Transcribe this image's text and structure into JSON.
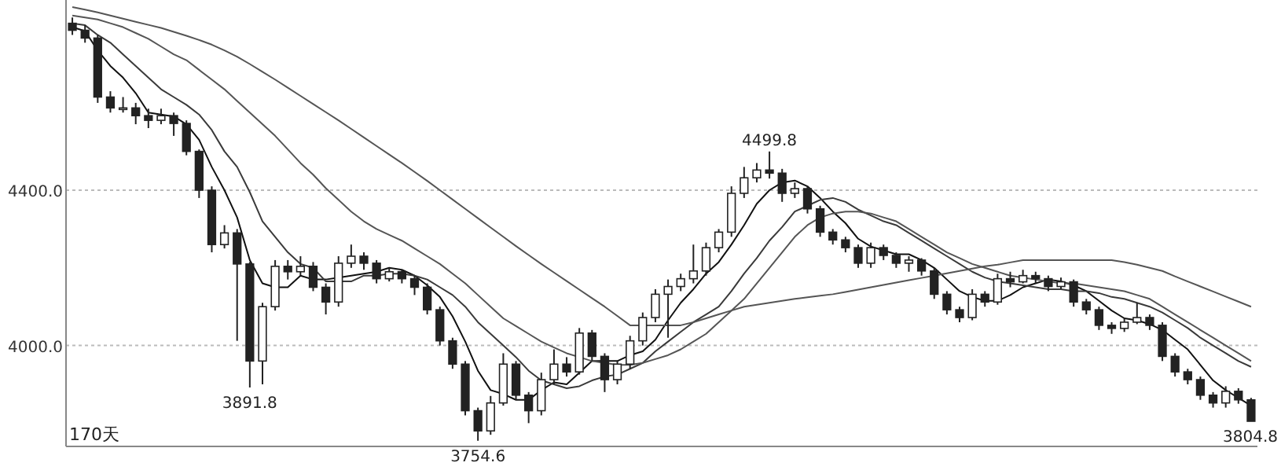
{
  "chart_data": {
    "type": "candlestick",
    "categories": [
      null,
      null,
      null,
      null,
      null,
      null,
      null,
      null,
      null,
      null,
      null,
      null,
      null,
      null,
      null,
      null,
      null,
      null,
      null,
      null,
      null,
      null,
      null,
      null,
      null,
      null,
      null,
      null,
      null,
      null,
      null,
      null,
      null,
      null,
      null,
      null,
      null,
      null,
      null,
      null,
      null,
      null,
      null,
      null,
      null,
      null,
      null,
      null,
      null,
      null,
      null,
      null,
      null,
      null,
      null,
      null,
      null,
      null,
      null,
      null,
      null,
      null,
      null,
      null,
      null,
      null,
      null,
      null,
      null,
      null,
      null,
      null,
      null,
      null,
      null,
      null,
      null,
      null,
      null,
      null,
      null,
      null,
      null,
      null,
      null,
      null,
      null,
      null,
      null,
      null,
      null,
      null,
      null,
      null
    ],
    "ohlc": [
      [
        4830,
        4845,
        4800,
        4812
      ],
      [
        4812,
        4825,
        4780,
        4792
      ],
      [
        4792,
        4800,
        4625,
        4640
      ],
      [
        4640,
        4655,
        4600,
        4612
      ],
      [
        4612,
        4640,
        4600,
        4612
      ],
      [
        4612,
        4625,
        4570,
        4592
      ],
      [
        4592,
        4610,
        4560,
        4580
      ],
      [
        4580,
        4610,
        4570,
        4592
      ],
      [
        4592,
        4600,
        4540,
        4572
      ],
      [
        4572,
        4580,
        4490,
        4500
      ],
      [
        4500,
        4505,
        4380,
        4400
      ],
      [
        4400,
        4410,
        4240,
        4260
      ],
      [
        4260,
        4310,
        4250,
        4290
      ],
      [
        4290,
        4300,
        4012,
        4210
      ],
      [
        4210,
        4215,
        3891.8,
        3960
      ],
      [
        3960,
        4110,
        3900,
        4100
      ],
      [
        4100,
        4220,
        4090,
        4204
      ],
      [
        4204,
        4220,
        4170,
        4190
      ],
      [
        4190,
        4230,
        4180,
        4204
      ],
      [
        4204,
        4215,
        4140,
        4150
      ],
      [
        4150,
        4160,
        4080,
        4112
      ],
      [
        4112,
        4230,
        4100,
        4212
      ],
      [
        4212,
        4260,
        4200,
        4230
      ],
      [
        4230,
        4240,
        4195,
        4212
      ],
      [
        4212,
        4220,
        4160,
        4172
      ],
      [
        4172,
        4200,
        4165,
        4190
      ],
      [
        4190,
        4195,
        4160,
        4172
      ],
      [
        4172,
        4180,
        4130,
        4150
      ],
      [
        4150,
        4160,
        4080,
        4092
      ],
      [
        4092,
        4100,
        4000,
        4012
      ],
      [
        4012,
        4020,
        3940,
        3952
      ],
      [
        3952,
        3960,
        3820,
        3832
      ],
      [
        3832,
        3840,
        3754.6,
        3780
      ],
      [
        3780,
        3870,
        3770,
        3852
      ],
      [
        3852,
        3980,
        3845,
        3952
      ],
      [
        3952,
        3960,
        3860,
        3872
      ],
      [
        3872,
        3880,
        3800,
        3832
      ],
      [
        3832,
        3930,
        3820,
        3912
      ],
      [
        3912,
        3990,
        3900,
        3952
      ],
      [
        3952,
        3970,
        3920,
        3932
      ],
      [
        3932,
        4045,
        3925,
        4032
      ],
      [
        4032,
        4040,
        3960,
        3972
      ],
      [
        3972,
        3980,
        3880,
        3912
      ],
      [
        3912,
        3960,
        3900,
        3952
      ],
      [
        3952,
        4025,
        3940,
        4012
      ],
      [
        4012,
        4085,
        4000,
        4072
      ],
      [
        4072,
        4145,
        4060,
        4132
      ],
      [
        4132,
        4170,
        4020,
        4152
      ],
      [
        4152,
        4185,
        4140,
        4172
      ],
      [
        4172,
        4260,
        4160,
        4192
      ],
      [
        4192,
        4265,
        4180,
        4252
      ],
      [
        4252,
        4300,
        4240,
        4292
      ],
      [
        4292,
        4410,
        4280,
        4392
      ],
      [
        4392,
        4460,
        4380,
        4432
      ],
      [
        4432,
        4470,
        4420,
        4452
      ],
      [
        4452,
        4499.8,
        4430,
        4444
      ],
      [
        4444,
        4455,
        4370,
        4392
      ],
      [
        4392,
        4420,
        4380,
        4404
      ],
      [
        4404,
        4410,
        4340,
        4352
      ],
      [
        4352,
        4360,
        4280,
        4292
      ],
      [
        4292,
        4300,
        4260,
        4272
      ],
      [
        4272,
        4280,
        4240,
        4252
      ],
      [
        4252,
        4260,
        4200,
        4212
      ],
      [
        4212,
        4265,
        4200,
        4252
      ],
      [
        4252,
        4260,
        4220,
        4232
      ],
      [
        4232,
        4240,
        4200,
        4212
      ],
      [
        4212,
        4230,
        4190,
        4220
      ],
      [
        4220,
        4225,
        4180,
        4192
      ],
      [
        4192,
        4200,
        4120,
        4132
      ],
      [
        4132,
        4140,
        4080,
        4092
      ],
      [
        4092,
        4100,
        4060,
        4072
      ],
      [
        4072,
        4145,
        4065,
        4132
      ],
      [
        4132,
        4140,
        4100,
        4112
      ],
      [
        4112,
        4185,
        4105,
        4172
      ],
      [
        4172,
        4190,
        4150,
        4164
      ],
      [
        4164,
        4195,
        4160,
        4180
      ],
      [
        4180,
        4190,
        4160,
        4172
      ],
      [
        4172,
        4180,
        4140,
        4152
      ],
      [
        4152,
        4175,
        4145,
        4164
      ],
      [
        4164,
        4170,
        4100,
        4112
      ],
      [
        4112,
        4120,
        4080,
        4092
      ],
      [
        4092,
        4100,
        4040,
        4052
      ],
      [
        4052,
        4060,
        4030,
        4044
      ],
      [
        4044,
        4070,
        4035,
        4060
      ],
      [
        4060,
        4110,
        4055,
        4072
      ],
      [
        4072,
        4080,
        4040,
        4052
      ],
      [
        4052,
        4060,
        3960,
        3972
      ],
      [
        3972,
        3980,
        3920,
        3932
      ],
      [
        3932,
        3940,
        3900,
        3912
      ],
      [
        3912,
        3920,
        3860,
        3872
      ],
      [
        3872,
        3880,
        3840,
        3852
      ],
      [
        3852,
        3895,
        3840,
        3882
      ],
      [
        3882,
        3890,
        3850,
        3860
      ],
      [
        3860,
        3865,
        3804.8,
        3804.8
      ]
    ],
    "series": [
      {
        "type": "line",
        "color": "#111111",
        "values": [
          4820,
          4810,
          4760,
          4720,
          4690,
          4650,
          4600,
          4595,
          4590,
          4570,
          4530,
          4460,
          4400,
          4330,
          4220,
          4160,
          4150,
          4150,
          4180,
          4170,
          4170,
          4175,
          4180,
          4185,
          4190,
          4200,
          4195,
          4180,
          4155,
          4125,
          4075,
          4010,
          3935,
          3885,
          3875,
          3860,
          3860,
          3885,
          3905,
          3900,
          3930,
          3960,
          3960,
          3960,
          3975,
          3985,
          4015,
          4065,
          4110,
          4145,
          4185,
          4215,
          4260,
          4310,
          4365,
          4400,
          4420,
          4425,
          4410,
          4380,
          4345,
          4315,
          4275,
          4255,
          4245,
          4235,
          4235,
          4220,
          4200,
          4170,
          4140,
          4125,
          4115,
          4115,
          4130,
          4150,
          4160,
          4170,
          4165,
          4155,
          4140,
          4115,
          4090,
          4070,
          4065,
          4055,
          4040,
          4015,
          3990,
          3950,
          3910,
          3885,
          3865,
          3845
        ]
      },
      {
        "type": "line",
        "color": "#3a3a3a",
        "values": [
          4830,
          4825,
          4800,
          4780,
          4750,
          4720,
          4690,
          4660,
          4640,
          4620,
          4595,
          4555,
          4500,
          4460,
          4395,
          4320,
          4280,
          4240,
          4210,
          4200,
          4165,
          4165,
          4165,
          4180,
          4180,
          4185,
          4185,
          4180,
          4170,
          4150,
          4130,
          4100,
          4060,
          4030,
          4000,
          3970,
          3935,
          3910,
          3900,
          3890,
          3895,
          3910,
          3920,
          3925,
          3940,
          3955,
          3985,
          4010,
          4035,
          4060,
          4080,
          4100,
          4140,
          4185,
          4225,
          4270,
          4305,
          4345,
          4360,
          4375,
          4380,
          4370,
          4350,
          4335,
          4320,
          4310,
          4290,
          4270,
          4250,
          4230,
          4210,
          4190,
          4175,
          4165,
          4160,
          4155,
          4150,
          4145,
          4145,
          4140,
          4140,
          4135,
          4125,
          4120,
          4110,
          4100,
          4085,
          4065,
          4045,
          4020,
          4000,
          3980,
          3960,
          3945
        ]
      },
      {
        "type": "line",
        "color": "#555555",
        "values": [
          4850,
          4845,
          4840,
          4830,
          4820,
          4805,
          4790,
          4770,
          4750,
          4735,
          4710,
          4685,
          4660,
          4630,
          4600,
          4570,
          4540,
          4505,
          4470,
          4440,
          4405,
          4375,
          4345,
          4320,
          4300,
          4285,
          4270,
          4250,
          4230,
          4210,
          4185,
          4160,
          4130,
          4100,
          4070,
          4050,
          4030,
          4010,
          3995,
          3980,
          3970,
          3960,
          3955,
          3950,
          3950,
          3955,
          3965,
          3975,
          3990,
          4010,
          4030,
          4060,
          4090,
          4120,
          4160,
          4200,
          4240,
          4280,
          4310,
          4330,
          4340,
          4345,
          4345,
          4340,
          4330,
          4320,
          4300,
          4280,
          4260,
          4240,
          4225,
          4210,
          4200,
          4190,
          4180,
          4175,
          4170,
          4165,
          4160,
          4160,
          4155,
          4150,
          4145,
          4140,
          4130,
          4120,
          4100,
          4080,
          4060,
          4040,
          4020,
          4000,
          3980,
          3960
        ]
      },
      {
        "type": "line",
        "color": "#555555",
        "values": [
          4872,
          4865,
          4858,
          4850,
          4842,
          4834,
          4826,
          4818,
          4808,
          4798,
          4787,
          4775,
          4760,
          4744,
          4725,
          4705,
          4685,
          4664,
          4643,
          4622,
          4601,
          4580,
          4558,
          4536,
          4514,
          4492,
          4470,
          4447,
          4424,
          4400,
          4376,
          4352,
          4328,
          4304,
          4280,
          4256,
          4233,
          4210,
          4188,
          4166,
          4144,
          4122,
          4100,
          4076,
          4052,
          4052,
          4052,
          4052,
          4052,
          4060,
          4070,
          4080,
          4090,
          4100,
          4105,
          4110,
          4115,
          4120,
          4124,
          4128,
          4132,
          4138,
          4144,
          4150,
          4156,
          4162,
          4168,
          4174,
          4180,
          4186,
          4192,
          4198,
          4204,
          4208,
          4214,
          4220,
          4220,
          4220,
          4220,
          4220,
          4220,
          4220,
          4220,
          4215,
          4208,
          4200,
          4192,
          4178,
          4165,
          4152,
          4139,
          4126,
          4113,
          4100
        ]
      }
    ],
    "ylim": [
      3740,
      4890
    ],
    "yticks": [
      {
        "value": 4400,
        "label": "4400.0"
      },
      {
        "value": 4000,
        "label": "4000.0"
      }
    ],
    "grid": "y",
    "tick_labels": "y",
    "annotations": [
      "170天",
      {
        "text": "3891.8",
        "y": 3891.8
      },
      {
        "text": "3754.6",
        "y": 3754.6
      },
      {
        "text": "4499.8",
        "y": 4499.8
      },
      {
        "text": "3804.8",
        "y": 3804.8
      }
    ]
  }
}
